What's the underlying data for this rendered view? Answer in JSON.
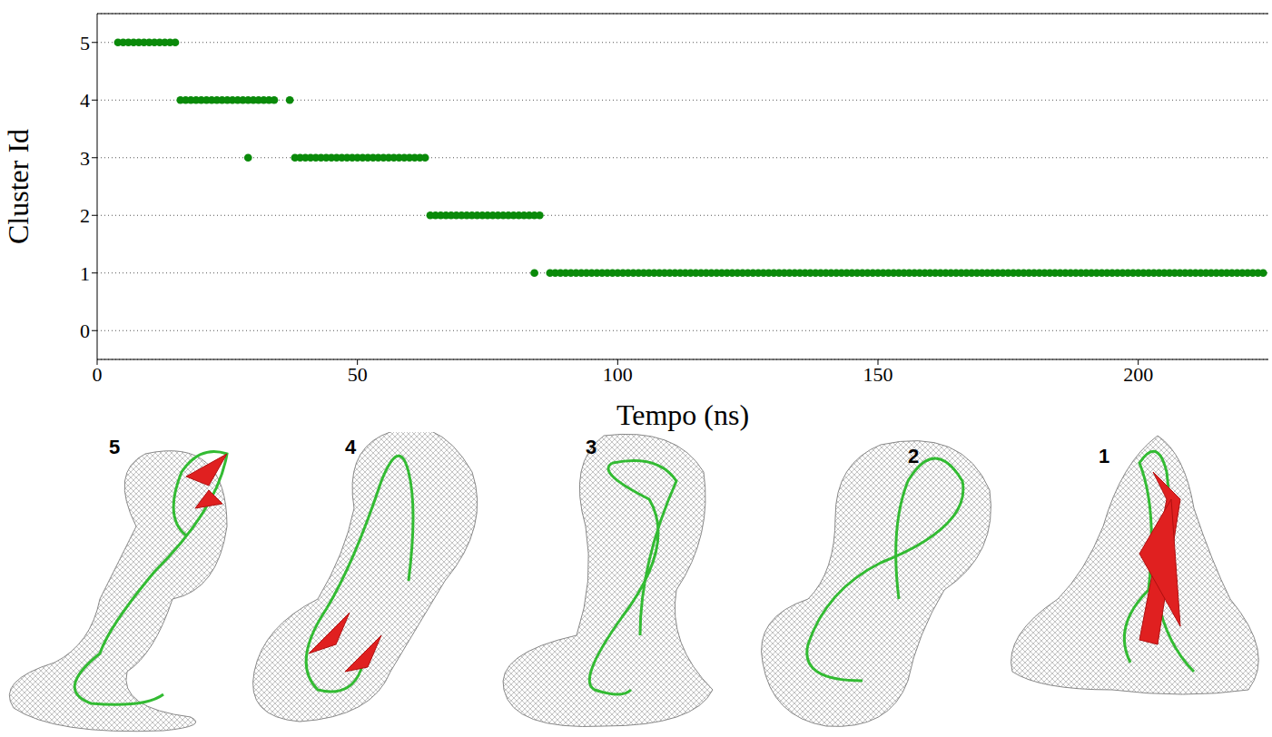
{
  "chart_data": {
    "type": "scatter",
    "xlabel": "Tempo (ns)",
    "ylabel": "Cluster Id",
    "color": "#0a8a0a",
    "marker": "circle",
    "grid": true,
    "xlim": [
      0,
      225
    ],
    "xticks": [
      0,
      50,
      100,
      150,
      200
    ],
    "ylim": [
      -0.5,
      5.5
    ],
    "yticks": [
      0,
      1,
      2,
      3,
      4,
      5
    ],
    "annotations": [
      "5",
      "4",
      "3",
      "2",
      "1"
    ],
    "x": [
      4,
      5,
      6,
      7,
      8,
      9,
      10,
      11,
      12,
      13,
      14,
      15,
      16,
      17,
      18,
      19,
      20,
      21,
      22,
      23,
      24,
      25,
      26,
      27,
      28,
      29,
      30,
      31,
      32,
      33,
      34,
      37,
      29,
      38,
      39,
      40,
      41,
      42,
      43,
      44,
      45,
      46,
      47,
      48,
      49,
      50,
      51,
      52,
      53,
      54,
      55,
      56,
      57,
      58,
      59,
      60,
      61,
      62,
      63,
      64,
      65,
      66,
      67,
      68,
      69,
      70,
      71,
      72,
      73,
      74,
      75,
      76,
      77,
      78,
      79,
      80,
      81,
      82,
      83,
      84,
      85,
      84,
      87,
      88,
      89,
      90,
      91,
      92,
      93,
      94,
      95,
      96,
      97,
      98,
      99,
      100,
      101,
      102,
      103,
      104,
      105,
      106,
      107,
      108,
      109,
      110,
      111,
      112,
      113,
      114,
      115,
      116,
      117,
      118,
      119,
      120,
      121,
      122,
      123,
      124,
      125,
      126,
      127,
      128,
      129,
      130,
      131,
      132,
      133,
      134,
      135,
      136,
      137,
      138,
      139,
      140,
      141,
      142,
      143,
      144,
      145,
      146,
      147,
      148,
      149,
      150,
      151,
      152,
      153,
      154,
      155,
      156,
      157,
      158,
      159,
      160,
      161,
      162,
      163,
      164,
      165,
      166,
      167,
      168,
      169,
      170,
      171,
      172,
      173,
      174,
      175,
      176,
      177,
      178,
      179,
      180,
      181,
      182,
      183,
      184,
      185,
      186,
      187,
      188,
      189,
      190,
      191,
      192,
      193,
      194,
      195,
      196,
      197,
      198,
      199,
      200,
      201,
      202,
      203,
      204,
      205,
      206,
      207,
      208,
      209,
      210,
      211,
      212,
      213,
      214,
      215,
      216,
      217,
      218,
      219,
      220,
      221,
      222,
      223,
      224
    ],
    "values": [
      5,
      5,
      5,
      5,
      5,
      5,
      5,
      5,
      5,
      5,
      5,
      5,
      4,
      4,
      4,
      4,
      4,
      4,
      4,
      4,
      4,
      4,
      4,
      4,
      4,
      4,
      4,
      4,
      4,
      4,
      4,
      4,
      3,
      3,
      3,
      3,
      3,
      3,
      3,
      3,
      3,
      3,
      3,
      3,
      3,
      3,
      3,
      3,
      3,
      3,
      3,
      3,
      3,
      3,
      3,
      3,
      3,
      3,
      3,
      2,
      2,
      2,
      2,
      2,
      2,
      2,
      2,
      2,
      2,
      2,
      2,
      2,
      2,
      2,
      2,
      2,
      2,
      2,
      2,
      2,
      2,
      1,
      1,
      1,
      1,
      1,
      1,
      1,
      1,
      1,
      1,
      1,
      1,
      1,
      1,
      1,
      1,
      1,
      1,
      1,
      1,
      1,
      1,
      1,
      1,
      1,
      1,
      1,
      1,
      1,
      1,
      1,
      1,
      1,
      1,
      1,
      1,
      1,
      1,
      1,
      1,
      1,
      1,
      1,
      1,
      1,
      1,
      1,
      1,
      1,
      1,
      1,
      1,
      1,
      1,
      1,
      1,
      1,
      1,
      1,
      1,
      1,
      1,
      1,
      1,
      1,
      1,
      1,
      1,
      1,
      1,
      1,
      1,
      1,
      1,
      1,
      1,
      1,
      1,
      1,
      1,
      1,
      1,
      1,
      1,
      1,
      1,
      1,
      1,
      1,
      1,
      1,
      1,
      1,
      1,
      1,
      1,
      1,
      1,
      1,
      1,
      1,
      1,
      1,
      1,
      1,
      1,
      1,
      1,
      1,
      1,
      1,
      1,
      1,
      1,
      1,
      1,
      1,
      1,
      1,
      1,
      1,
      1,
      1,
      1,
      1,
      1,
      1,
      1,
      1,
      1,
      1,
      1,
      1,
      1,
      1,
      1,
      1,
      1,
      1
    ]
  }
}
